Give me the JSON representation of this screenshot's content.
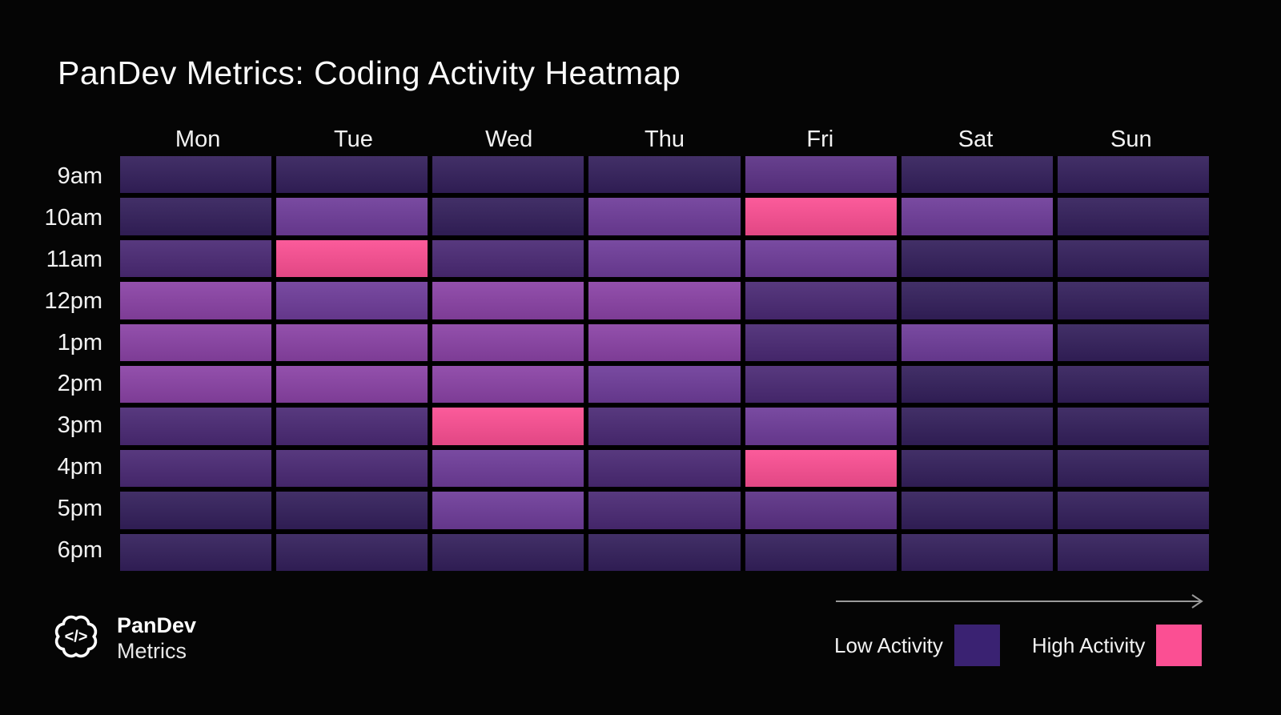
{
  "title": "PanDev Metrics: Coding Activity Heatmap",
  "brand": {
    "icon": "brain-code-icon",
    "name_line1": "PanDev",
    "name_line2": "Metrics"
  },
  "legend": {
    "low_label": "Low Activity",
    "high_label": "High Activity",
    "low_color": "#3a2272",
    "high_color": "#fb4f93",
    "arrow_icon": "arrow-right-icon",
    "arrow_color": "#9a9a9a"
  },
  "chart_data": {
    "type": "heatmap",
    "title": "PanDev Metrics: Coding Activity Heatmap",
    "columns": [
      "Mon",
      "Tue",
      "Wed",
      "Thu",
      "Fri",
      "Sat",
      "Sun"
    ],
    "rows": [
      "9am",
      "10am",
      "11am",
      "12pm",
      "1pm",
      "2pm",
      "3pm",
      "4pm",
      "5pm",
      "6pm"
    ],
    "palette": [
      "#281848",
      "#34205c",
      "#4b2a75",
      "#5c3286",
      "#6f3d9a",
      "#8b43a6",
      "#fb4f93"
    ],
    "palette_meaning": "index 0 = lowest activity, index 6 = highest activity (pink)",
    "values": [
      [
        1,
        1,
        1,
        1,
        3,
        1,
        1
      ],
      [
        1,
        4,
        1,
        4,
        6,
        4,
        1
      ],
      [
        2,
        6,
        2,
        4,
        4,
        1,
        1
      ],
      [
        5,
        4,
        5,
        5,
        2,
        1,
        1
      ],
      [
        5,
        5,
        5,
        5,
        2,
        4,
        1
      ],
      [
        5,
        5,
        5,
        4,
        2,
        1,
        1
      ],
      [
        2,
        2,
        6,
        2,
        4,
        1,
        1
      ],
      [
        2,
        2,
        4,
        2,
        6,
        1,
        1
      ],
      [
        1,
        1,
        4,
        2,
        3,
        1,
        1
      ],
      [
        1,
        1,
        1,
        1,
        1,
        1,
        1
      ]
    ],
    "highlight_cells": [
      {
        "row": "10am",
        "col": "Fri",
        "level": 6
      },
      {
        "row": "11am",
        "col": "Tue",
        "level": 6
      },
      {
        "row": "3pm",
        "col": "Wed",
        "level": 6
      },
      {
        "row": "4pm",
        "col": "Fri",
        "level": 6
      }
    ],
    "legend_position": "bottom-right",
    "grid": "black 6px gaps between cells",
    "background": "#050505"
  }
}
